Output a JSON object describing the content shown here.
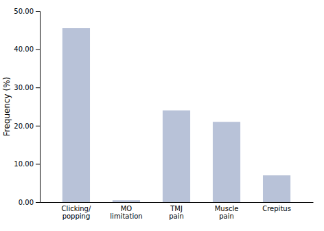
{
  "chart_data": {
    "type": "bar",
    "categories": [
      "Clicking/\npopping",
      "MO\nlimitation",
      "TMJ\npain",
      "Muscle\npain",
      "Crepitus"
    ],
    "values": [
      45.5,
      0.5,
      24.0,
      21.0,
      7.0
    ],
    "color": "#b8c2d8",
    "ylabel": "Frequency (%)",
    "ylim": [
      0,
      50
    ],
    "yticks": [
      {
        "value": 0,
        "label": "0.00"
      },
      {
        "value": 10,
        "label": "10.00"
      },
      {
        "value": 20,
        "label": "20.00"
      },
      {
        "value": 30,
        "label": "30.00"
      },
      {
        "value": 40,
        "label": "40.00"
      },
      {
        "value": 50,
        "label": "50.00"
      }
    ],
    "grid": false
  }
}
